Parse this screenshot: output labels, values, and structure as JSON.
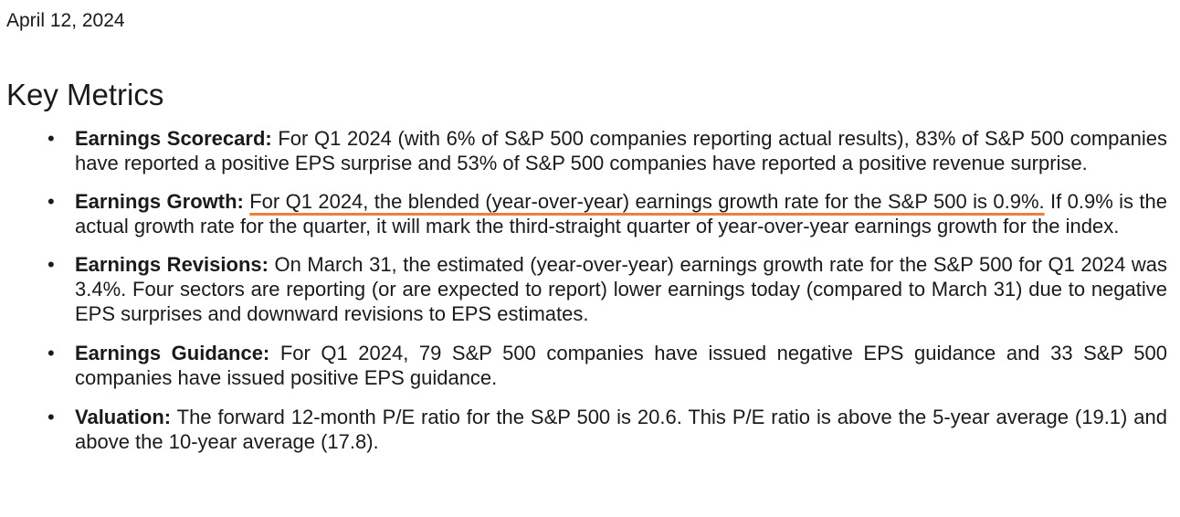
{
  "date": "April 12, 2024",
  "heading": "Key Metrics",
  "bullet_glyph": "•",
  "highlight_color": "#f07d3a",
  "items": [
    {
      "label": "Earnings Scorecard:",
      "text": "For Q1 2024 (with 6% of S&P 500 companies reporting actual results), 83% of S&P 500 companies have reported a positive EPS surprise and 53% of S&P 500 companies have reported a positive revenue surprise."
    },
    {
      "label": "Earnings Growth:",
      "highlight": "For Q1 2024, the blended (year-over-year) earnings growth rate for the S&P 500 is 0.9%.",
      "text": "If 0.9% is the actual growth rate for the quarter, it will mark the third-straight quarter of year-over-year earnings growth for the index."
    },
    {
      "label": "Earnings Revisions:",
      "text": "On March 31, the estimated (year-over-year) earnings growth rate for the S&P 500 for Q1 2024 was 3.4%. Four sectors are reporting (or are expected to report) lower earnings today (compared to March 31) due to negative EPS surprises and downward revisions to EPS estimates."
    },
    {
      "label": "Earnings Guidance:",
      "text": "For Q1 2024, 79 S&P 500 companies have issued negative EPS guidance and 33 S&P 500 companies have issued positive EPS guidance."
    },
    {
      "label": "Valuation:",
      "text": "The forward 12-month P/E ratio for the S&P 500 is 20.6. This P/E ratio is above the 5-year average (19.1) and above the 10-year average (17.8)."
    }
  ]
}
